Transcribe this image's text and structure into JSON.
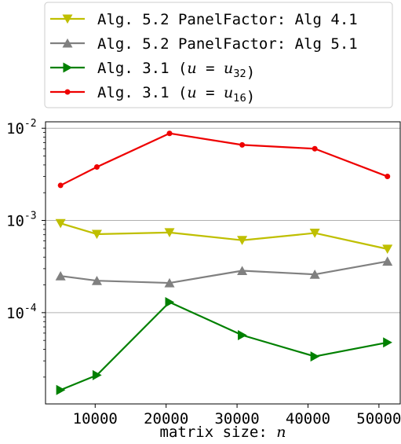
{
  "chart_data": {
    "type": "line",
    "xlabel": "matrix size: n",
    "ylabel": "",
    "title": "",
    "y_scale": "log",
    "xlim": [
      3000,
      53000
    ],
    "ylim_log10": [
      -4.99,
      -1.93
    ],
    "grid": "y-major",
    "legend_position": "above-plot",
    "x_ticks": [
      10000,
      20000,
      30000,
      40000,
      50000
    ],
    "y_ticks": [
      {
        "value": 0.0001,
        "base": "10",
        "exp": "-4"
      },
      {
        "value": 0.001,
        "base": "10",
        "exp": "-3"
      },
      {
        "value": 0.01,
        "base": "10",
        "exp": "-2"
      }
    ],
    "x": [
      5120,
      10240,
      20480,
      30720,
      40960,
      51200
    ],
    "series": [
      {
        "name": "Alg. 5.2 PanelFactor: Alg 4.1",
        "label_parts": [
          {
            "t": "Alg. 5.2 PanelFactor: Alg 4.1",
            "s": "n"
          }
        ],
        "color": "#bfbf00",
        "marker": "triangle-down",
        "values": [
          0.00093,
          0.00071,
          0.00074,
          0.00061,
          0.00073,
          0.00049
        ]
      },
      {
        "name": "Alg. 5.2 PanelFactor: Alg 5.1",
        "label_parts": [
          {
            "t": "Alg. 5.2 PanelFactor: Alg 5.1",
            "s": "n"
          }
        ],
        "color": "#808080",
        "marker": "triangle-up",
        "values": [
          0.00025,
          0.000222,
          0.00021,
          0.000285,
          0.00026,
          0.00036
        ]
      },
      {
        "name": "Alg. 3.1 (u = u32)",
        "label_parts": [
          {
            "t": "Alg. 3.1 (",
            "s": "n"
          },
          {
            "t": "u",
            "s": "i"
          },
          {
            "t": " = ",
            "s": "n"
          },
          {
            "t": "u",
            "s": "i"
          },
          {
            "t": "32",
            "s": "sub"
          },
          {
            "t": ")",
            "s": "n"
          }
        ],
        "color": "#008000",
        "marker": "triangle-right",
        "values": [
          1.45e-05,
          2.1e-05,
          0.00013,
          5.7e-05,
          3.35e-05,
          4.75e-05
        ]
      },
      {
        "name": "Alg. 3.1 (u = u16)",
        "label_parts": [
          {
            "t": "Alg. 3.1 (",
            "s": "n"
          },
          {
            "t": "u",
            "s": "i"
          },
          {
            "t": " = ",
            "s": "n"
          },
          {
            "t": "u",
            "s": "i"
          },
          {
            "t": "16",
            "s": "sub"
          },
          {
            "t": ")",
            "s": "n"
          }
        ],
        "color": "#ee0000",
        "marker": "circle",
        "values": [
          0.0024,
          0.0038,
          0.0088,
          0.0066,
          0.006,
          0.003
        ]
      }
    ]
  }
}
